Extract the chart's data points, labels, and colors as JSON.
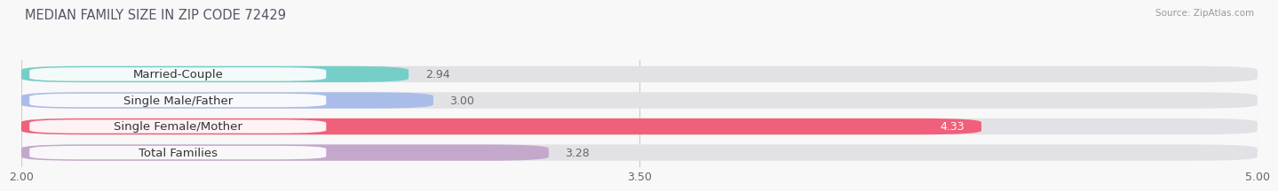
{
  "title": "MEDIAN FAMILY SIZE IN ZIP CODE 72429",
  "source": "Source: ZipAtlas.com",
  "categories": [
    "Married-Couple",
    "Single Male/Father",
    "Single Female/Mother",
    "Total Families"
  ],
  "values": [
    2.94,
    3.0,
    4.33,
    3.28
  ],
  "bar_colors": [
    "#76cec9",
    "#aabde8",
    "#f0607a",
    "#c4a8cc"
  ],
  "bar_bg_color": "#e2e2e6",
  "xlim": [
    2.0,
    5.0
  ],
  "xticks": [
    2.0,
    3.5,
    5.0
  ],
  "xtick_labels": [
    "2.00",
    "3.50",
    "5.00"
  ],
  "value_color_inside": "#ffffff",
  "value_color_outside": "#666666",
  "background_color": "#f8f8f8",
  "bar_height": 0.62,
  "title_fontsize": 10.5,
  "label_fontsize": 9.5,
  "value_fontsize": 9,
  "tick_fontsize": 9,
  "bar_gap": 0.38
}
